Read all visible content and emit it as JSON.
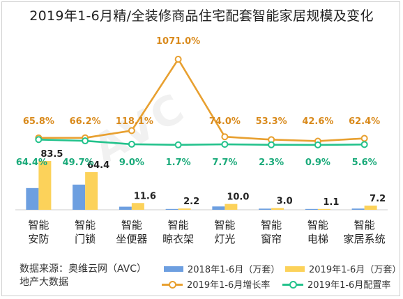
{
  "chart_data": {
    "type": "bar+line",
    "title": "2019年1-6月精/全装修商品住宅配套智能家居规模及变化",
    "categories": [
      [
        "智能",
        "安防"
      ],
      [
        "智能",
        "门锁"
      ],
      [
        "智能",
        "坐便器"
      ],
      [
        "智能",
        "晾衣架"
      ],
      [
        "智能",
        "灯光"
      ],
      [
        "智能",
        "窗帘"
      ],
      [
        "智能",
        "电梯"
      ],
      [
        "智能",
        "家居系统"
      ]
    ],
    "series": [
      {
        "name": "2018年1-6月（万套）",
        "type": "bar",
        "color": "#6d9fe0",
        "values": [
          37.2,
          43.1,
          5.3,
          0.2,
          5.7,
          2.0,
          0.8,
          2.1
        ],
        "labels_shown": false
      },
      {
        "name": "2019年1-6月（万套）",
        "type": "bar",
        "color": "#fcd25a",
        "values": [
          83.5,
          64.4,
          11.6,
          2.2,
          10.0,
          3.0,
          1.1,
          7.2
        ],
        "labels": [
          "83.5",
          "64.4",
          "11.6",
          "2.2",
          "10.0",
          "3.0",
          "1.1",
          "7.2"
        ]
      },
      {
        "name": "2019年1-6月增长率",
        "type": "line",
        "color": "#e8a030",
        "values": [
          65.8,
          66.2,
          118.1,
          1071.0,
          74.0,
          53.3,
          42.6,
          62.4
        ],
        "labels": [
          "65.8%",
          "66.2%",
          "118.1%",
          "1071.0%",
          "74.0%",
          "53.3%",
          "42.6%",
          "62.4%"
        ]
      },
      {
        "name": "2019年1-6月配置率",
        "type": "line",
        "color": "#23c28c",
        "values": [
          64.4,
          49.7,
          9.0,
          1.7,
          7.7,
          2.3,
          0.9,
          5.6
        ],
        "labels": [
          "64.4%",
          "49.7%",
          "9.0%",
          "1.7%",
          "7.7%",
          "2.3%",
          "0.9%",
          "5.6%"
        ]
      }
    ],
    "grid": false,
    "legend_position": "bottom-right"
  },
  "source": {
    "line1": "数据来源：奥维云网（AVC）",
    "line2": "地产大数据"
  },
  "colors": {
    "bar2018": "#6d9fe0",
    "bar2019": "#fcd25a",
    "growth": "#e8a030",
    "config": "#23c28c",
    "growth_label": "#d98a1c",
    "config_label": "#1aaa7a"
  }
}
